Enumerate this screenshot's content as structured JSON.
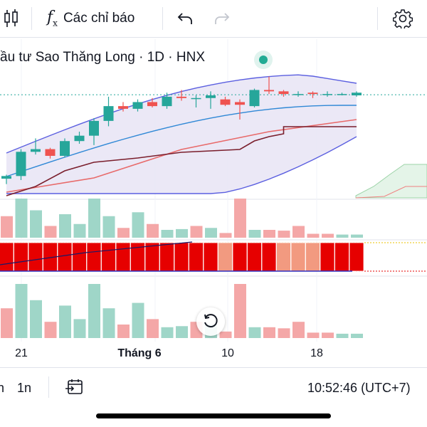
{
  "toolbar": {
    "chart_type_icon": "candlestick-icon",
    "indicators_icon": "fx-icon",
    "indicators_fx": "f",
    "indicators_fx_sub": "x",
    "indicators_label": "Các chỉ báo",
    "undo_icon": "undo-icon",
    "redo_icon": "redo-icon",
    "settings_icon": "gear-icon"
  },
  "legend": {
    "title": "ầu tư Sao Thăng Long · 1D · HNX",
    "status_color": "#22ab94"
  },
  "colors": {
    "up": "#26a69a",
    "down": "#ef5350",
    "up_volume": "#9fd6c8",
    "down_volume": "#f4a7a7",
    "bb_fill": "#e7e4f4",
    "bb_line": "#5b5fe0",
    "basis": "#2f88d6",
    "ma_red": "#e86a6a",
    "ma_dark": "#7a1e2c",
    "oscillator_red": "#e60000",
    "oscillator_salmon": "#f29a80",
    "oscillator_yellow": "#f6f52a"
  },
  "x_axis": {
    "labels": [
      {
        "text": "21",
        "bold": false
      },
      {
        "text": "Tháng 6",
        "bold": true
      },
      {
        "text": "10",
        "bold": false
      },
      {
        "text": "18",
        "bold": false
      }
    ]
  },
  "chart_data": {
    "type": "candlestick",
    "bars": [
      {
        "o": 3.0,
        "h": 3.3,
        "l": 2.6,
        "c": 3.2
      },
      {
        "o": 3.2,
        "h": 5.2,
        "l": 2.9,
        "c": 5.0
      },
      {
        "o": 5.0,
        "h": 6.0,
        "l": 4.8,
        "c": 5.2
      },
      {
        "o": 5.2,
        "h": 5.3,
        "l": 4.5,
        "c": 4.7
      },
      {
        "o": 4.7,
        "h": 6.0,
        "l": 4.6,
        "c": 5.8
      },
      {
        "o": 5.8,
        "h": 6.5,
        "l": 5.6,
        "c": 6.2
      },
      {
        "o": 6.2,
        "h": 7.5,
        "l": 5.5,
        "c": 7.3
      },
      {
        "o": 7.3,
        "h": 9.1,
        "l": 6.9,
        "c": 8.4
      },
      {
        "o": 8.4,
        "h": 8.7,
        "l": 8.0,
        "c": 8.2
      },
      {
        "o": 8.2,
        "h": 8.9,
        "l": 8.0,
        "c": 8.7
      },
      {
        "o": 8.7,
        "h": 9.0,
        "l": 8.3,
        "c": 8.4
      },
      {
        "o": 8.4,
        "h": 9.4,
        "l": 8.2,
        "c": 9.1
      },
      {
        "o": 9.1,
        "h": 9.6,
        "l": 8.8,
        "c": 9.0
      },
      {
        "o": 9.0,
        "h": 9.2,
        "l": 8.3,
        "c": 9.0
      },
      {
        "o": 9.0,
        "h": 9.5,
        "l": 8.2,
        "c": 9.2
      },
      {
        "o": 8.9,
        "h": 9.1,
        "l": 8.4,
        "c": 8.5
      },
      {
        "o": 8.7,
        "h": 8.9,
        "l": 7.4,
        "c": 8.5
      },
      {
        "o": 8.4,
        "h": 9.7,
        "l": 8.3,
        "c": 9.6
      },
      {
        "o": 9.6,
        "h": 10.6,
        "l": 9.3,
        "c": 9.5
      },
      {
        "o": 9.5,
        "h": 9.6,
        "l": 9.1,
        "c": 9.3
      },
      {
        "o": 9.3,
        "h": 9.5,
        "l": 9.1,
        "c": 9.3
      },
      {
        "o": 9.4,
        "h": 9.5,
        "l": 9.0,
        "c": 9.3
      },
      {
        "o": 9.3,
        "h": 9.5,
        "l": 9.1,
        "c": 9.3
      },
      {
        "o": 9.3,
        "h": 9.4,
        "l": 9.2,
        "c": 9.3
      },
      {
        "o": 9.2,
        "h": 9.5,
        "l": 9.1,
        "c": 9.4
      }
    ],
    "volume_up": [
      false,
      true,
      true,
      false,
      true,
      true,
      true,
      true,
      false,
      true,
      false,
      true,
      true,
      false,
      true,
      false,
      false,
      true,
      false,
      false,
      false,
      false,
      false,
      true,
      true
    ],
    "volume_top": [
      0.55,
      1.0,
      0.7,
      0.3,
      0.6,
      0.35,
      1.0,
      0.55,
      0.25,
      0.65,
      0.35,
      0.2,
      0.22,
      0.3,
      0.25,
      0.12,
      1.0,
      0.2,
      0.2,
      0.18,
      0.3,
      0.1,
      0.1,
      0.08,
      0.08
    ],
    "osc_colors": [
      "red",
      "red",
      "red",
      "red",
      "red",
      "red",
      "red",
      "red",
      "red",
      "red",
      "red",
      "red",
      "red",
      "red",
      "red",
      "salmon",
      "red",
      "red",
      "red",
      "salmon",
      "salmon",
      "salmon",
      "red",
      "red",
      "red"
    ]
  },
  "bottombar": {
    "interval_left": "n",
    "interval_1n": "1n",
    "goto_icon": "calendar-goto-icon",
    "time": "10:52:46 (UTC+7)"
  },
  "reset_icon": "rotate-reset-icon"
}
